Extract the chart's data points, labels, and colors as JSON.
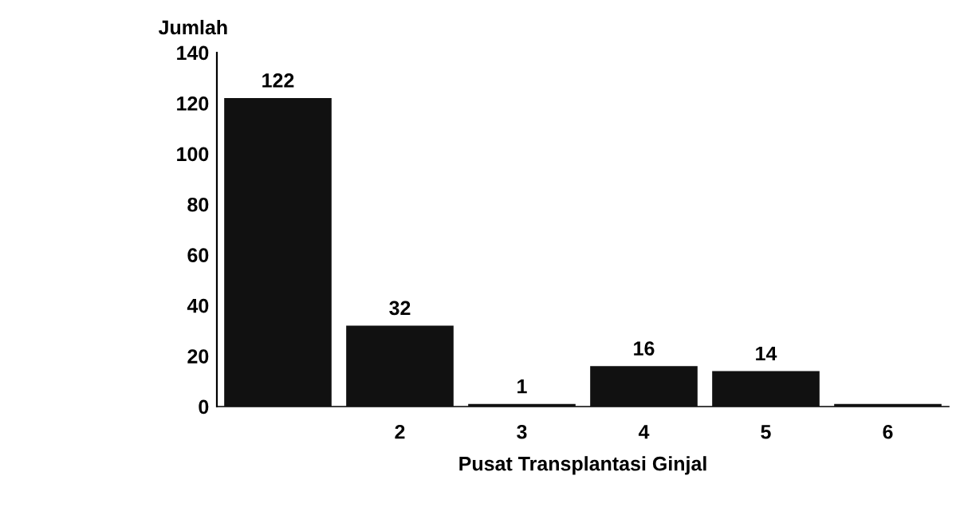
{
  "chart_data": {
    "type": "bar",
    "ylabel": "Jumlah",
    "xlabel": "Pusat Transplantasi Ginjal",
    "categories": [
      null,
      "2",
      "3",
      "4",
      "5",
      "6"
    ],
    "values": [
      122,
      32,
      1,
      16,
      14,
      1
    ],
    "value_labels": [
      "122",
      "32",
      "1",
      "16",
      "14",
      null
    ],
    "color": "#111111",
    "ylim": [
      0,
      140
    ],
    "yticks": [
      0,
      20,
      40,
      60,
      80,
      100,
      120,
      140
    ],
    "grid": false,
    "legend": false
  }
}
